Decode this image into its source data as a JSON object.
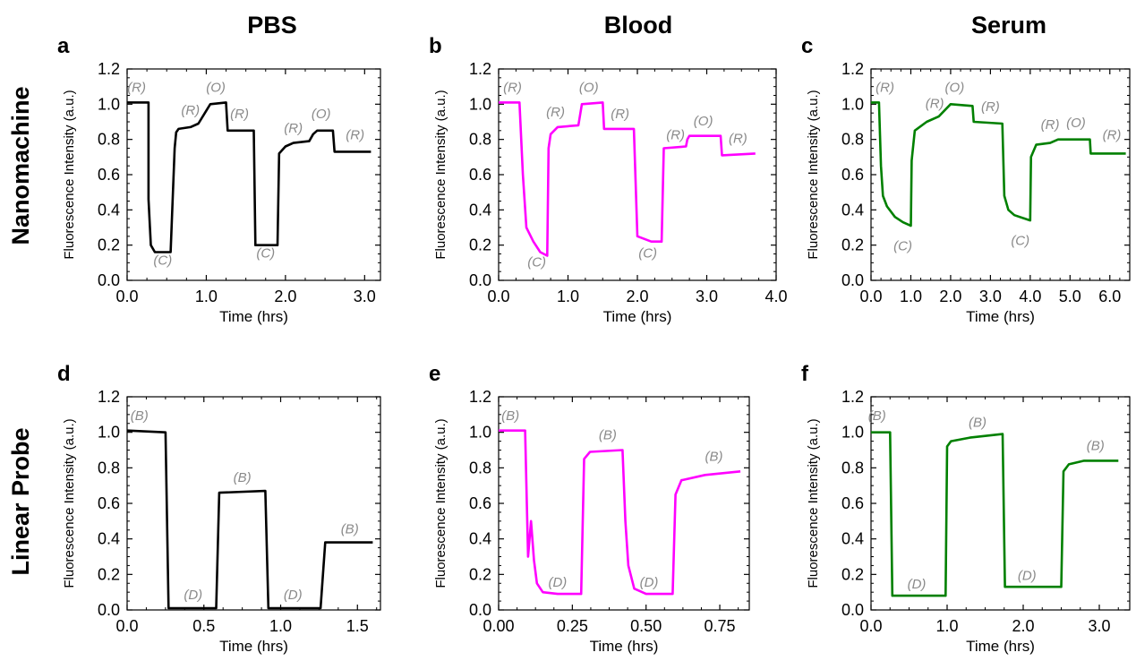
{
  "column_titles": [
    "PBS",
    "Blood",
    "Serum"
  ],
  "row_titles": [
    "Nanomachine",
    "Linear Probe"
  ],
  "chart_data": [
    {
      "panel": "a",
      "type": "line",
      "color": "#000000",
      "xlabel": "Time (hrs)",
      "ylabel": "Fluorescence Intensity (a.u.)",
      "xlim": [
        0,
        3.2
      ],
      "ylim": [
        0,
        1.2
      ],
      "xticks": [
        0,
        1,
        2,
        3
      ],
      "xticklabels": [
        "0.0",
        "1.0",
        "2.0",
        "3.0"
      ],
      "yticks": [
        0,
        0.2,
        0.4,
        0.6,
        0.8,
        1.0,
        1.2
      ],
      "yticklabels": [
        "0.0",
        "0.2",
        "0.4",
        "0.6",
        "0.8",
        "1.0",
        "1.2"
      ],
      "x": [
        0.0,
        0.27,
        0.27,
        0.27,
        0.3,
        0.35,
        0.55,
        0.6,
        0.62,
        0.65,
        0.8,
        0.9,
        1.05,
        1.25,
        1.27,
        1.6,
        1.62,
        1.9,
        1.92,
        2.0,
        2.1,
        2.3,
        2.35,
        2.4,
        2.6,
        2.62,
        3.08
      ],
      "y": [
        1.01,
        1.01,
        0.93,
        0.46,
        0.2,
        0.16,
        0.16,
        0.75,
        0.84,
        0.86,
        0.87,
        0.89,
        1.0,
        1.01,
        0.85,
        0.85,
        0.2,
        0.2,
        0.72,
        0.76,
        0.78,
        0.79,
        0.83,
        0.85,
        0.85,
        0.73,
        0.73
      ],
      "annotations": [
        {
          "text": "(R)",
          "x": 0.12,
          "y": 1.07
        },
        {
          "text": "(C)",
          "x": 0.45,
          "y": 0.09
        },
        {
          "text": "(R)",
          "x": 0.8,
          "y": 0.94
        },
        {
          "text": "(O)",
          "x": 1.12,
          "y": 1.07
        },
        {
          "text": "(R)",
          "x": 1.42,
          "y": 0.92
        },
        {
          "text": "(C)",
          "x": 1.75,
          "y": 0.13
        },
        {
          "text": "(R)",
          "x": 2.1,
          "y": 0.84
        },
        {
          "text": "(O)",
          "x": 2.45,
          "y": 0.92
        },
        {
          "text": "(R)",
          "x": 2.88,
          "y": 0.8
        }
      ]
    },
    {
      "panel": "b",
      "type": "line",
      "color": "#ff00ff",
      "xlabel": "Time (hrs)",
      "ylabel": "Fluorescence Intensity (a.u.)",
      "xlim": [
        0,
        4.0
      ],
      "ylim": [
        0,
        1.2
      ],
      "xticks": [
        0,
        1,
        2,
        3,
        4
      ],
      "xticklabels": [
        "0.0",
        "1.0",
        "2.0",
        "3.0",
        "4.0"
      ],
      "yticks": [
        0,
        0.2,
        0.4,
        0.6,
        0.8,
        1.0,
        1.2
      ],
      "yticklabels": [
        "0.0",
        "0.2",
        "0.4",
        "0.6",
        "0.8",
        "1.0",
        "1.2"
      ],
      "x": [
        0.0,
        0.3,
        0.35,
        0.4,
        0.5,
        0.6,
        0.7,
        0.72,
        0.75,
        0.85,
        1.15,
        1.2,
        1.5,
        1.52,
        1.95,
        2.0,
        2.2,
        2.35,
        2.38,
        2.7,
        2.72,
        2.75,
        3.2,
        3.22,
        3.7
      ],
      "y": [
        1.01,
        1.01,
        0.6,
        0.3,
        0.22,
        0.16,
        0.14,
        0.75,
        0.83,
        0.87,
        0.88,
        1.0,
        1.01,
        0.86,
        0.86,
        0.25,
        0.22,
        0.22,
        0.75,
        0.76,
        0.8,
        0.82,
        0.82,
        0.71,
        0.72
      ],
      "annotations": [
        {
          "text": "(R)",
          "x": 0.2,
          "y": 1.07
        },
        {
          "text": "(C)",
          "x": 0.55,
          "y": 0.08
        },
        {
          "text": "(R)",
          "x": 0.82,
          "y": 0.93
        },
        {
          "text": "(O)",
          "x": 1.3,
          "y": 1.07
        },
        {
          "text": "(R)",
          "x": 1.75,
          "y": 0.92
        },
        {
          "text": "(C)",
          "x": 2.15,
          "y": 0.13
        },
        {
          "text": "(R)",
          "x": 2.55,
          "y": 0.8
        },
        {
          "text": "(O)",
          "x": 2.95,
          "y": 0.88
        },
        {
          "text": "(R)",
          "x": 3.45,
          "y": 0.78
        }
      ]
    },
    {
      "panel": "c",
      "type": "line",
      "color": "#008000",
      "xlabel": "Time (hrs)",
      "ylabel": "Fluorescence Intensity (a.u.)",
      "xlim": [
        0,
        6.5
      ],
      "ylim": [
        0,
        1.2
      ],
      "xticks": [
        0,
        1,
        2,
        3,
        4,
        5,
        6
      ],
      "xticklabels": [
        "0.0",
        "1.0",
        "2.0",
        "3.0",
        "4.0",
        "5.0",
        "6.0"
      ],
      "yticks": [
        0,
        0.2,
        0.4,
        0.6,
        0.8,
        1.0,
        1.2
      ],
      "yticklabels": [
        "0.0",
        "0.2",
        "0.4",
        "0.6",
        "0.8",
        "1.0",
        "1.2"
      ],
      "x": [
        0.0,
        0.2,
        0.25,
        0.3,
        0.4,
        0.6,
        0.8,
        1.0,
        1.02,
        1.1,
        1.4,
        1.7,
        2.0,
        2.55,
        2.58,
        3.3,
        3.35,
        3.45,
        3.6,
        4.0,
        4.02,
        4.15,
        4.5,
        4.7,
        5.5,
        5.52,
        6.4
      ],
      "y": [
        1.01,
        1.01,
        0.65,
        0.48,
        0.42,
        0.36,
        0.33,
        0.31,
        0.68,
        0.85,
        0.9,
        0.93,
        1.0,
        0.99,
        0.9,
        0.89,
        0.48,
        0.4,
        0.37,
        0.34,
        0.7,
        0.77,
        0.78,
        0.8,
        0.8,
        0.72,
        0.72
      ],
      "annotations": [
        {
          "text": "(R)",
          "x": 0.35,
          "y": 1.07
        },
        {
          "text": "(C)",
          "x": 0.8,
          "y": 0.17
        },
        {
          "text": "(R)",
          "x": 1.6,
          "y": 0.98
        },
        {
          "text": "(O)",
          "x": 2.1,
          "y": 1.07
        },
        {
          "text": "(R)",
          "x": 3.0,
          "y": 0.96
        },
        {
          "text": "(C)",
          "x": 3.75,
          "y": 0.2
        },
        {
          "text": "(R)",
          "x": 4.5,
          "y": 0.86
        },
        {
          "text": "(O)",
          "x": 5.15,
          "y": 0.87
        },
        {
          "text": "(R)",
          "x": 6.05,
          "y": 0.8
        }
      ]
    },
    {
      "panel": "d",
      "type": "line",
      "color": "#000000",
      "xlabel": "Time (hrs)",
      "ylabel": "Fluorescence Intensity (a.u.)",
      "xlim": [
        0,
        1.65
      ],
      "ylim": [
        0,
        1.2
      ],
      "xticks": [
        0,
        0.5,
        1.0,
        1.5
      ],
      "xticklabels": [
        "0.0",
        "0.5",
        "1.0",
        "1.5"
      ],
      "yticks": [
        0,
        0.2,
        0.4,
        0.6,
        0.8,
        1.0,
        1.2
      ],
      "yticklabels": [
        "0.0",
        "0.2",
        "0.4",
        "0.6",
        "0.8",
        "1.0",
        "1.2"
      ],
      "x": [
        0.0,
        0.25,
        0.27,
        0.58,
        0.6,
        0.9,
        0.92,
        1.26,
        1.29,
        1.6
      ],
      "y": [
        1.01,
        1.0,
        0.01,
        0.01,
        0.66,
        0.67,
        0.01,
        0.01,
        0.38,
        0.38
      ],
      "annotations": [
        {
          "text": "(B)",
          "x": 0.08,
          "y": 1.07
        },
        {
          "text": "(D)",
          "x": 0.43,
          "y": 0.06
        },
        {
          "text": "(B)",
          "x": 0.75,
          "y": 0.72
        },
        {
          "text": "(D)",
          "x": 1.08,
          "y": 0.06
        },
        {
          "text": "(B)",
          "x": 1.45,
          "y": 0.43
        }
      ]
    },
    {
      "panel": "e",
      "type": "line",
      "color": "#ff00ff",
      "xlabel": "Time (hrs)",
      "ylabel": "Fluorescence Intensity (a.u.)",
      "xlim": [
        0,
        0.85
      ],
      "ylim": [
        0,
        1.2
      ],
      "xticks": [
        0,
        0.25,
        0.5,
        0.75
      ],
      "xticklabels": [
        "0.00",
        "0.25",
        "0.50",
        "0.75"
      ],
      "yticks": [
        0,
        0.2,
        0.4,
        0.6,
        0.8,
        1.0,
        1.2
      ],
      "yticklabels": [
        "0.0",
        "0.2",
        "0.4",
        "0.6",
        "0.8",
        "1.0",
        "1.2"
      ],
      "x": [
        0.0,
        0.09,
        0.1,
        0.11,
        0.12,
        0.13,
        0.15,
        0.2,
        0.28,
        0.29,
        0.31,
        0.42,
        0.43,
        0.44,
        0.46,
        0.5,
        0.59,
        0.6,
        0.62,
        0.7,
        0.82
      ],
      "y": [
        1.01,
        1.01,
        0.3,
        0.5,
        0.28,
        0.15,
        0.1,
        0.09,
        0.09,
        0.85,
        0.89,
        0.9,
        0.5,
        0.25,
        0.12,
        0.09,
        0.09,
        0.65,
        0.73,
        0.76,
        0.78
      ],
      "annotations": [
        {
          "text": "(B)",
          "x": 0.04,
          "y": 1.07
        },
        {
          "text": "(D)",
          "x": 0.2,
          "y": 0.13
        },
        {
          "text": "(B)",
          "x": 0.37,
          "y": 0.96
        },
        {
          "text": "(D)",
          "x": 0.51,
          "y": 0.13
        },
        {
          "text": "(B)",
          "x": 0.73,
          "y": 0.84
        }
      ]
    },
    {
      "panel": "f",
      "type": "line",
      "color": "#008000",
      "xlabel": "Time (hrs)",
      "ylabel": "Fluorescence Intensity (a.u.)",
      "xlim": [
        0,
        3.4
      ],
      "ylim": [
        0,
        1.2
      ],
      "xticks": [
        0,
        1,
        2,
        3
      ],
      "xticklabels": [
        "0.0",
        "1.0",
        "2.0",
        "3.0"
      ],
      "yticks": [
        0,
        0.2,
        0.4,
        0.6,
        0.8,
        1.0,
        1.2
      ],
      "yticklabels": [
        "0.0",
        "0.2",
        "0.4",
        "0.6",
        "0.8",
        "1.0",
        "1.2"
      ],
      "x": [
        0.0,
        0.25,
        0.28,
        0.98,
        1.0,
        1.05,
        1.3,
        1.73,
        1.76,
        2.5,
        2.53,
        2.6,
        2.8,
        3.25
      ],
      "y": [
        1.0,
        1.0,
        0.08,
        0.08,
        0.92,
        0.95,
        0.97,
        0.99,
        0.13,
        0.13,
        0.78,
        0.82,
        0.84,
        0.84
      ],
      "annotations": [
        {
          "text": "(B)",
          "x": 0.08,
          "y": 1.07
        },
        {
          "text": "(D)",
          "x": 0.6,
          "y": 0.12
        },
        {
          "text": "(B)",
          "x": 1.4,
          "y": 1.03
        },
        {
          "text": "(D)",
          "x": 2.05,
          "y": 0.17
        },
        {
          "text": "(B)",
          "x": 2.95,
          "y": 0.9
        }
      ]
    }
  ]
}
